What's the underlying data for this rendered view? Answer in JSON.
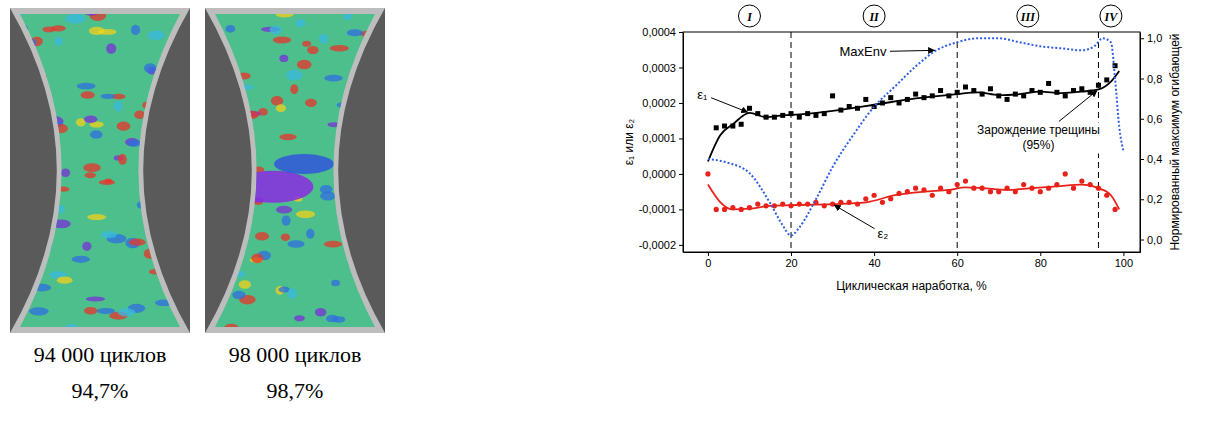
{
  "chart_data": {
    "type": "line",
    "xlabel": "Циклическая наработка, %",
    "ylabel": "ε₁ или ε₂",
    "y2label": "Нормированный максимум огибающей",
    "xlim": [
      -6,
      104
    ],
    "xticks": [
      0,
      20,
      40,
      60,
      80,
      100
    ],
    "ylim": [
      -0.00022,
      0.0004
    ],
    "yticks": [
      {
        "value": -0.0002,
        "label": "-0,0002"
      },
      {
        "value": -0.0001,
        "label": "-0,0001"
      },
      {
        "value": 0,
        "label": "0,0000"
      },
      {
        "value": 0.0001,
        "label": "0,0001"
      },
      {
        "value": 0.0002,
        "label": "0,0002"
      },
      {
        "value": 0.0003,
        "label": "0,0003"
      },
      {
        "value": 0.0004,
        "label": "0,0004"
      }
    ],
    "y2lim": [
      -0.062,
      1.031
    ],
    "y2ticks": [
      {
        "value": 0,
        "label": "0,0"
      },
      {
        "value": 0.2,
        "label": "0,2"
      },
      {
        "value": 0.4,
        "label": "0,4"
      },
      {
        "value": 0.6,
        "label": "0,6"
      },
      {
        "value": 0.8,
        "label": "0,8"
      },
      {
        "value": 1,
        "label": "1,0"
      }
    ],
    "phases": {
      "boundaries": [
        20,
        60,
        94
      ],
      "labels": [
        "I",
        "II",
        "III",
        "IV"
      ]
    },
    "annotations": [
      {
        "text": "Зарождение трещины (95%)",
        "x": 94,
        "y": 0.000238
      }
    ],
    "series": [
      {
        "name": "ε₁",
        "type": "scatter",
        "color": "#000000",
        "marker": "square",
        "line_style": "solid",
        "x": [
          2,
          4,
          6,
          8,
          10,
          12,
          14,
          16,
          18,
          20,
          22,
          24,
          26,
          28,
          30,
          32,
          34,
          36,
          38,
          40,
          42,
          44,
          46,
          48,
          50,
          52,
          54,
          56,
          58,
          60,
          62,
          64,
          66,
          68,
          70,
          72,
          74,
          76,
          78,
          80,
          82,
          84,
          86,
          88,
          90,
          92,
          94,
          96,
          98
        ],
        "values": [
          0.00013,
          0.000135,
          0.000135,
          0.00014,
          0.000185,
          0.00017,
          0.00016,
          0.00016,
          0.000165,
          0.00017,
          0.00016,
          0.00017,
          0.000165,
          0.00017,
          0.00022,
          0.00018,
          0.00019,
          0.000185,
          0.00021,
          0.00019,
          0.0002,
          0.000215,
          0.0002,
          0.00021,
          0.000225,
          0.000215,
          0.00022,
          0.000235,
          0.00022,
          0.00023,
          0.000245,
          0.000235,
          0.000225,
          0.00024,
          0.00022,
          0.00021,
          0.000225,
          0.00022,
          0.000235,
          0.00023,
          0.000255,
          0.00023,
          0.00022,
          0.000235,
          0.00024,
          0.00023,
          0.00025,
          0.000265,
          0.000305
        ],
        "trend_x": [
          0,
          3,
          6,
          10,
          14,
          18,
          22,
          30,
          40,
          50,
          60,
          65,
          70,
          75,
          80,
          85,
          90,
          94,
          97,
          99
        ],
        "trend": [
          3.5e-05,
          0.00011,
          0.00014,
          0.000172,
          0.00016,
          0.000165,
          0.000168,
          0.000178,
          0.000195,
          0.000213,
          0.000225,
          0.00023,
          0.000222,
          0.000225,
          0.000232,
          0.000228,
          0.000232,
          0.000238,
          0.00026,
          0.00029
        ]
      },
      {
        "name": "ε₂",
        "type": "scatter",
        "color": "#e8221a",
        "marker": "circle",
        "line_style": "solid",
        "x": [
          0,
          2,
          4,
          6,
          8,
          10,
          12,
          14,
          16,
          18,
          20,
          22,
          24,
          26,
          28,
          30,
          32,
          34,
          36,
          38,
          40,
          42,
          44,
          46,
          48,
          50,
          52,
          54,
          56,
          58,
          60,
          62,
          64,
          66,
          68,
          70,
          72,
          74,
          76,
          78,
          80,
          82,
          84,
          86,
          88,
          90,
          92,
          94,
          96,
          98
        ],
        "values": [
          0.0,
          -0.0001,
          -0.0001,
          -9.5e-05,
          -0.0001,
          -9.5e-05,
          -8.5e-05,
          -9e-05,
          -9e-05,
          -8.5e-05,
          -9e-05,
          -8.5e-05,
          -8.5e-05,
          -8e-05,
          -9e-05,
          -8.5e-05,
          -8e-05,
          -8e-05,
          -8.5e-05,
          -7e-05,
          -6e-05,
          -8e-05,
          -7e-05,
          -5.5e-05,
          -5e-05,
          -4e-05,
          -4.5e-05,
          -6e-05,
          -4e-05,
          -5e-05,
          -3e-05,
          -2e-05,
          -4e-05,
          -4e-05,
          -5e-05,
          -5e-05,
          -4e-05,
          -5e-05,
          -3e-05,
          -4e-05,
          -5e-05,
          -4e-05,
          -3e-05,
          0.0,
          -4e-05,
          -2e-05,
          -3e-05,
          -4e-05,
          -6e-05,
          -0.0001
        ],
        "trend_x": [
          0,
          3,
          6,
          10,
          15,
          20,
          30,
          38,
          45,
          52,
          58,
          62,
          66,
          72,
          78,
          84,
          90,
          94,
          97,
          99
        ],
        "trend": [
          -3e-05,
          -8e-05,
          -0.0001,
          -9.8e-05,
          -9e-05,
          -8.8e-05,
          -8.5e-05,
          -8e-05,
          -6e-05,
          -5e-05,
          -4.5e-05,
          -3.8e-05,
          -4e-05,
          -4.5e-05,
          -4e-05,
          -3.5e-05,
          -3e-05,
          -4e-05,
          -6e-05,
          -0.0001
        ]
      },
      {
        "name": "MaxEnv",
        "type": "line",
        "color": "#2f5fe0",
        "line_style": "dotted",
        "axis": "y2",
        "x": [
          0,
          5,
          10,
          15,
          18,
          20,
          22,
          26,
          30,
          35,
          40,
          45,
          50,
          55,
          60,
          65,
          70,
          75,
          80,
          85,
          90,
          93,
          95,
          97,
          98,
          99,
          100
        ],
        "values": [
          0.4,
          0.38,
          0.33,
          0.18,
          0.07,
          0.02,
          0.06,
          0.2,
          0.36,
          0.52,
          0.66,
          0.76,
          0.86,
          0.94,
          0.98,
          1.0,
          1.0,
          0.98,
          0.96,
          0.95,
          0.94,
          0.96,
          1.0,
          0.98,
          0.8,
          0.56,
          0.44
        ]
      }
    ]
  },
  "images": [
    {
      "caption": [
        "94 000 циклов",
        "94,7%"
      ]
    },
    {
      "caption": [
        "98 000 циклов",
        "98,7%"
      ]
    }
  ]
}
